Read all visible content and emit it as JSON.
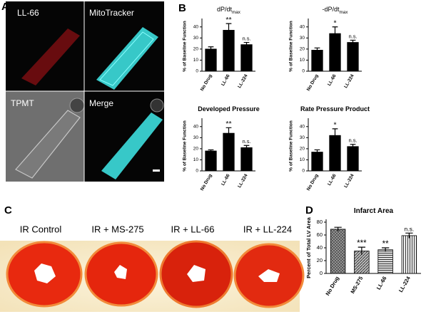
{
  "panel_labels": [
    "A",
    "B",
    "C",
    "D"
  ],
  "image_labels": [
    "LL-66",
    "MitoTracker",
    "TPMT",
    "Merge"
  ],
  "heart_labels": [
    "IR Control",
    "IR + MS-275",
    "IR + LL-66",
    "IR + LL-224"
  ],
  "chart_data": [
    {
      "type": "bar",
      "title": "dP/dt",
      "title_sub": "max",
      "y_label": "% of Baseline Function",
      "categories": [
        "No Drug",
        "LL-66",
        "LL-224"
      ],
      "values": [
        20,
        37,
        24
      ],
      "errors": [
        2,
        6,
        2
      ],
      "annotations": [
        null,
        "**",
        "n.s."
      ],
      "color": "#000000",
      "ylim": [
        0,
        45
      ],
      "yticks": [
        0,
        10,
        20,
        30,
        40
      ]
    },
    {
      "type": "bar",
      "title": "-dP/dt",
      "title_sub": "max",
      "y_label": "% of Baseline Function",
      "categories": [
        "No Drug",
        "LL-66",
        "LL-224"
      ],
      "values": [
        19,
        34,
        26
      ],
      "errors": [
        2,
        6,
        2
      ],
      "annotations": [
        null,
        "*",
        "n.s."
      ],
      "color": "#000000",
      "ylim": [
        0,
        45
      ],
      "yticks": [
        0,
        10,
        20,
        30,
        40
      ]
    },
    {
      "type": "bar",
      "title": "Developed Pressure",
      "y_label": "% of Baseline Function",
      "categories": [
        "No Drug",
        "LL-66",
        "LL-224"
      ],
      "values": [
        18,
        34,
        21
      ],
      "errors": [
        1,
        5,
        2
      ],
      "annotations": [
        null,
        "**",
        "n.s."
      ],
      "color": "#000000",
      "ylim": [
        0,
        45
      ],
      "yticks": [
        0,
        10,
        20,
        30,
        40
      ]
    },
    {
      "type": "bar",
      "title": "Rate Pressure Product",
      "y_label": "% of Baseline Function",
      "categories": [
        "No Drug",
        "LL-66",
        "LL-224"
      ],
      "values": [
        17,
        32,
        22
      ],
      "errors": [
        2,
        6,
        2
      ],
      "annotations": [
        null,
        "*",
        "n.s."
      ],
      "color": "#000000",
      "ylim": [
        0,
        45
      ],
      "yticks": [
        0,
        10,
        20,
        30,
        40
      ]
    },
    {
      "type": "bar",
      "title": "Infarct Area",
      "y_label": "Percent of Total LV Area",
      "categories": [
        "No Drug",
        "MS-275",
        "LL-66",
        "LL-224"
      ],
      "values": [
        69,
        35,
        37,
        59
      ],
      "errors": [
        3,
        6,
        3,
        4
      ],
      "annotations": [
        null,
        "***",
        "**",
        "n.s."
      ],
      "color": "#8a8a8a",
      "ylim": [
        0,
        80
      ],
      "yticks": [
        0,
        20,
        40,
        60,
        80
      ]
    }
  ]
}
